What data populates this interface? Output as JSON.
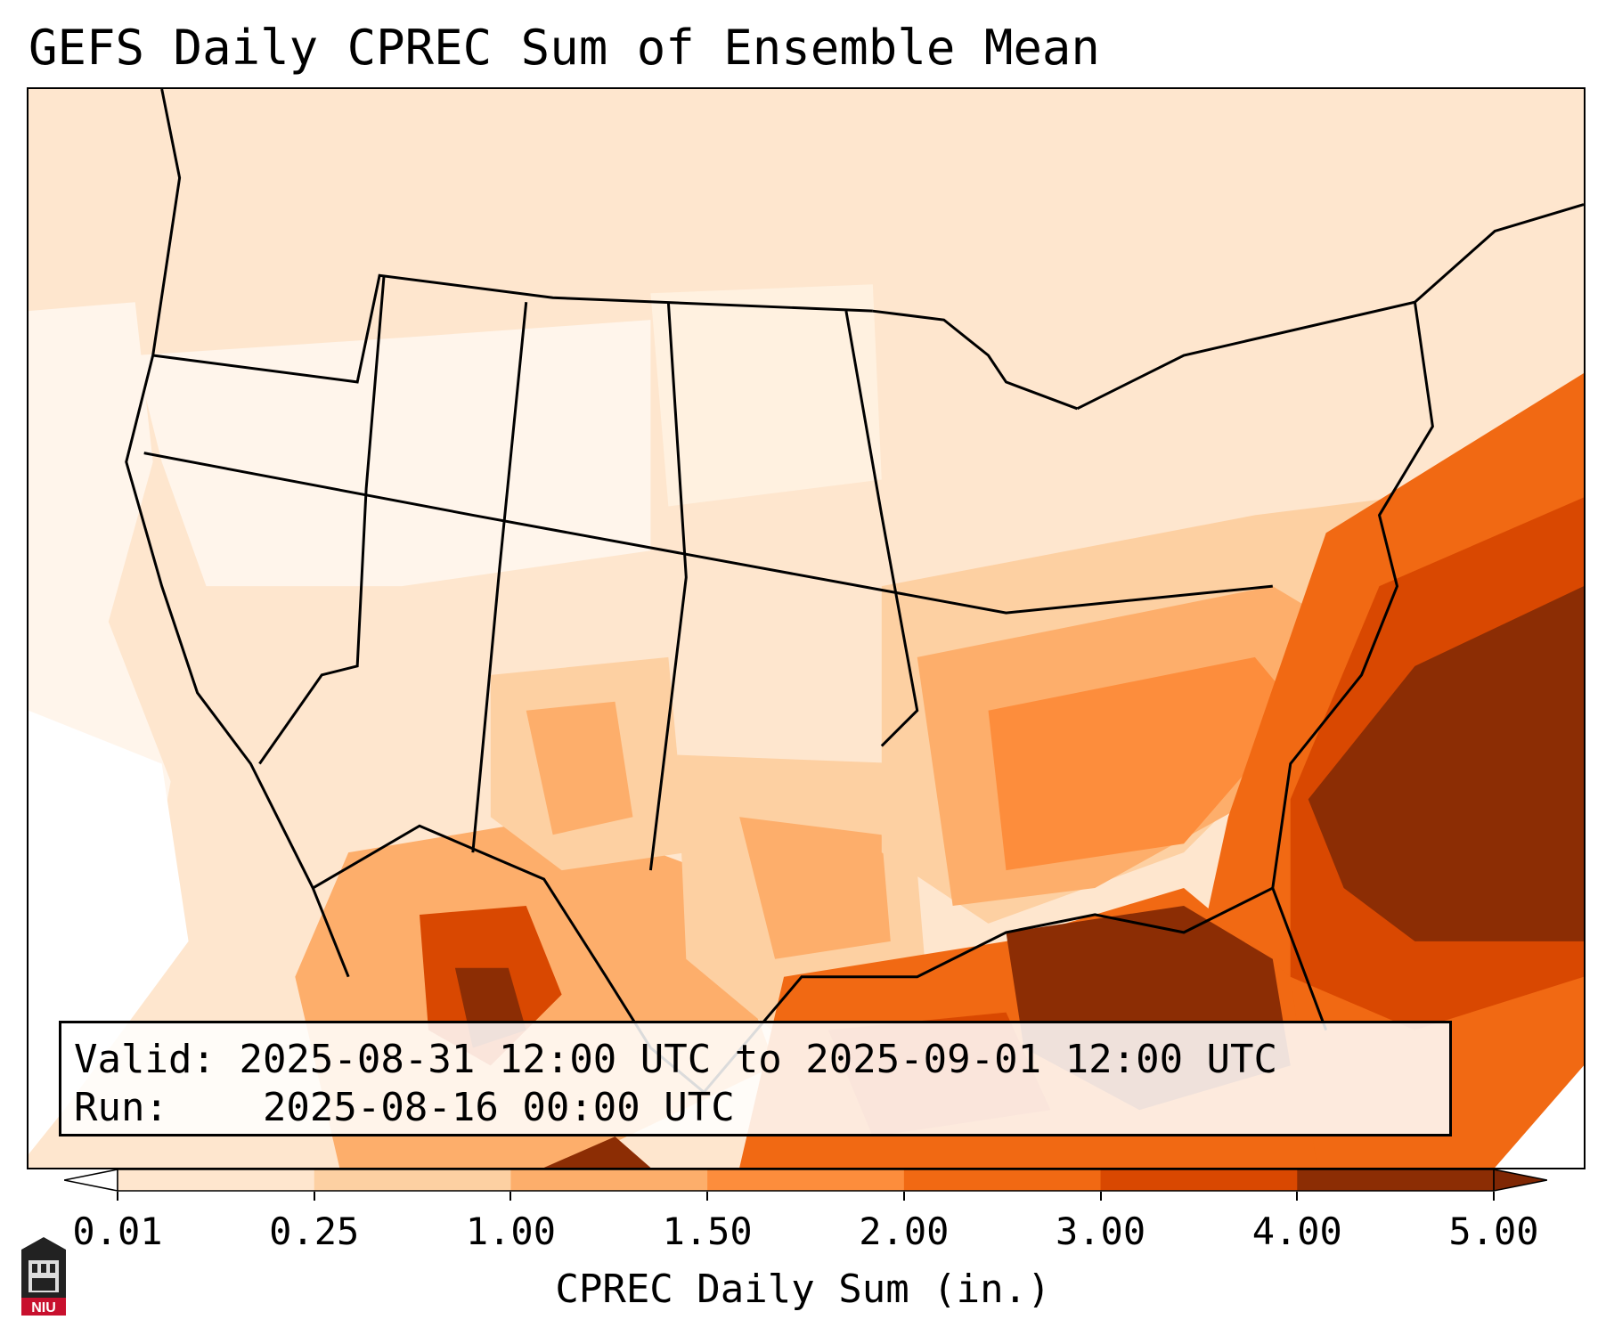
{
  "title": "GEFS Daily CPREC Sum of Ensemble Mean",
  "info": {
    "valid_label": "Valid:",
    "valid_text": "2025-08-31 12:00 UTC to 2025-09-01 12:00 UTC",
    "run_label": "Run:",
    "run_text": "2025-08-16 00:00 UTC"
  },
  "colorbar": {
    "label": "CPREC Daily Sum (in.)",
    "ticks": [
      "0.01",
      "0.25",
      "1.00",
      "1.50",
      "2.00",
      "3.00",
      "4.00",
      "5.00"
    ],
    "colors": [
      "#fff5eb",
      "#fee6ce",
      "#fdd0a2",
      "#fdae6b",
      "#fd8d3c",
      "#f16913",
      "#d94801",
      "#8c2d04"
    ],
    "under_color": "#ffffff",
    "over_color": "#7f2704"
  },
  "logo": {
    "text": "NIU",
    "color": "#c8102e"
  }
}
